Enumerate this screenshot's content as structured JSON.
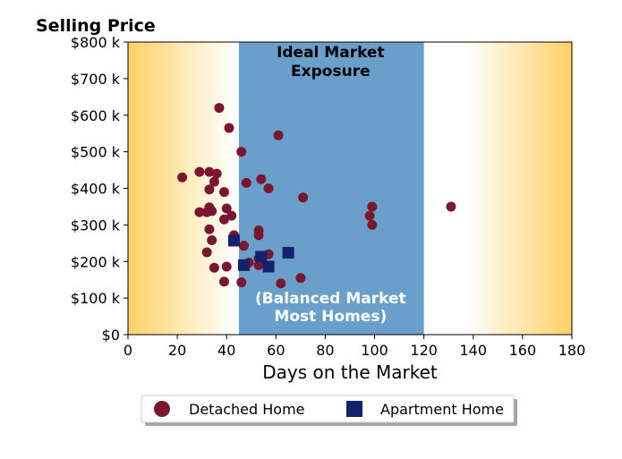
{
  "chart_data": {
    "type": "scatter",
    "title": "Selling Price",
    "xlabel": "Days on the Market",
    "ylabel": "",
    "xlim": [
      0,
      180
    ],
    "ylim": [
      0,
      800000
    ],
    "x_ticks": [
      0,
      20,
      40,
      60,
      80,
      100,
      120,
      140,
      160,
      180
    ],
    "y_ticks": [
      {
        "value": 0,
        "label": "$0"
      },
      {
        "value": 100000,
        "label": "$100 k"
      },
      {
        "value": 200000,
        "label": "$200 k"
      },
      {
        "value": 300000,
        "label": "$300 k"
      },
      {
        "value": 400000,
        "label": "$400 k"
      },
      {
        "value": 500000,
        "label": "$500 k"
      },
      {
        "value": 600000,
        "label": "$600 k"
      },
      {
        "value": 700000,
        "label": "$700 k"
      },
      {
        "value": 800000,
        "label": "$800 k"
      }
    ],
    "grid": false,
    "legend_position": "bottom-center",
    "background_gradient": {
      "edge_color": "#ffd166",
      "center_color": "#ffffff"
    },
    "band": {
      "x_start": 45,
      "x_end": 120,
      "color": "#6a9fcc",
      "label_top_lines": [
        "Ideal Market",
        "Exposure"
      ],
      "label_bottom_lines": [
        "(Balanced Market",
        "Most Homes)"
      ]
    },
    "series": [
      {
        "name": "Detached Home",
        "marker": "circle",
        "color": "#7b1630",
        "points": [
          [
            37,
            620000
          ],
          [
            41,
            565000
          ],
          [
            61,
            545000
          ],
          [
            46,
            500000
          ],
          [
            22,
            430000
          ],
          [
            29,
            445000
          ],
          [
            33,
            445000
          ],
          [
            36,
            440000
          ],
          [
            35,
            418000
          ],
          [
            48,
            415000
          ],
          [
            54,
            425000
          ],
          [
            57,
            400000
          ],
          [
            33,
            397000
          ],
          [
            39,
            390000
          ],
          [
            71,
            375000
          ],
          [
            99,
            350000
          ],
          [
            131,
            350000
          ],
          [
            29,
            335000
          ],
          [
            32,
            335000
          ],
          [
            33,
            348000
          ],
          [
            34,
            338000
          ],
          [
            40,
            345000
          ],
          [
            39,
            315000
          ],
          [
            42,
            325000
          ],
          [
            98,
            325000
          ],
          [
            99,
            300000
          ],
          [
            53,
            285000
          ],
          [
            33,
            288000
          ],
          [
            53,
            272000
          ],
          [
            43,
            272000
          ],
          [
            34,
            258000
          ],
          [
            47,
            243000
          ],
          [
            32,
            225000
          ],
          [
            57,
            220000
          ],
          [
            53,
            208000
          ],
          [
            49,
            197000
          ],
          [
            53,
            190000
          ],
          [
            35,
            183000
          ],
          [
            40,
            186000
          ],
          [
            39,
            145000
          ],
          [
            46,
            143000
          ],
          [
            62,
            140000
          ],
          [
            70,
            155000
          ]
        ]
      },
      {
        "name": "Apartment Home",
        "marker": "square",
        "color": "#13226b",
        "points": [
          [
            43,
            257000
          ],
          [
            54,
            213000
          ],
          [
            65,
            224000
          ],
          [
            47,
            190000
          ],
          [
            57,
            186000
          ]
        ]
      }
    ]
  }
}
